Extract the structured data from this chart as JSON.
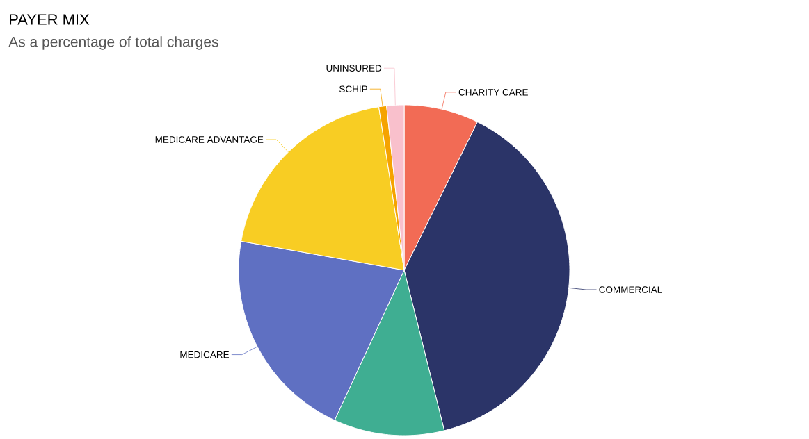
{
  "chart_data": {
    "type": "pie",
    "title": "PAYER MIX",
    "subtitle": "As a percentage of total charges",
    "categories": [
      "CHARITY CARE",
      "COMMERCIAL",
      null,
      "MEDICARE",
      "MEDICARE ADVANTAGE",
      "SCHIP",
      "UNINSURED"
    ],
    "values": [
      7.3,
      38.8,
      10.8,
      20.9,
      19.75,
      0.75,
      1.7
    ],
    "colors": [
      "#f26b55",
      "#2b3468",
      "#3fae92",
      "#5f70c2",
      "#f8cd23",
      "#f5a300",
      "#f9c0cc"
    ]
  }
}
